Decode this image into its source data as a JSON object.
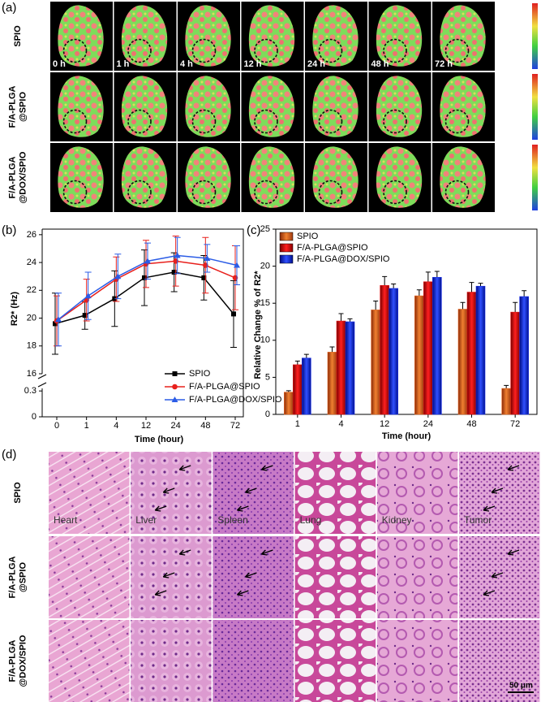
{
  "panel_a": {
    "label": "(a)",
    "rows": [
      [
        "SPIO"
      ],
      [
        "F/A-PLGA",
        "@SPIO"
      ],
      [
        "F/A-PLGA",
        "@DOX/SPIO"
      ]
    ],
    "time_labels": [
      "0 h",
      "1 h",
      "4 h",
      "12 h",
      "24 h",
      "48 h",
      "72 h"
    ]
  },
  "chart_data": [
    {
      "type": "line",
      "label": "(b)",
      "x_label": "Time (hour)",
      "y_label": "R2* (Hz)",
      "categories": [
        "0",
        "1",
        "4",
        "12",
        "24",
        "48",
        "72"
      ],
      "ylim": [
        16,
        26.4
      ],
      "yticks": [
        16,
        18,
        20,
        22,
        24,
        26
      ],
      "lower_ylim": [
        0,
        0.33
      ],
      "lower_yticks": [
        0,
        0.3
      ],
      "legend": "lower right",
      "series": [
        {
          "name": "SPIO",
          "color": "#000000",
          "marker": "square",
          "values": [
            19.6,
            20.2,
            21.4,
            22.9,
            23.3,
            22.9,
            20.3
          ],
          "errors": [
            2.2,
            1.0,
            2.0,
            2.0,
            1.4,
            1.6,
            2.4
          ]
        },
        {
          "name": "F/A-PLGA@SPIO",
          "color": "#e8201c",
          "marker": "circle",
          "values": [
            19.8,
            21.3,
            22.8,
            23.9,
            24.1,
            23.8,
            22.9
          ],
          "errors": [
            1.8,
            1.5,
            1.6,
            1.7,
            1.8,
            2.0,
            2.3
          ]
        },
        {
          "name": "F/A-PLGA@DOX/SPIO",
          "color": "#2b5ce6",
          "marker": "triangle",
          "values": [
            19.9,
            21.6,
            23.0,
            24.1,
            24.5,
            24.3,
            23.8
          ],
          "errors": [
            1.9,
            1.7,
            1.6,
            1.3,
            1.3,
            1.0,
            1.4
          ]
        }
      ]
    },
    {
      "type": "bar",
      "label": "(c)",
      "x_label": "Time (hour)",
      "y_label": "Relative Change % of R2*",
      "categories": [
        "1",
        "4",
        "12",
        "24",
        "48",
        "72"
      ],
      "ylim": [
        0,
        25
      ],
      "yticks": [
        0,
        5,
        10,
        15,
        20,
        25
      ],
      "legend": "upper left",
      "series": [
        {
          "name": "SPIO",
          "color": "#e8661e",
          "values": [
            3.0,
            8.4,
            14.1,
            16.0,
            14.2,
            3.5
          ],
          "errors": [
            0.2,
            0.7,
            1.2,
            0.8,
            0.9,
            0.4
          ]
        },
        {
          "name": "F/A-PLGA@SPIO",
          "color": "#e01414",
          "values": [
            6.7,
            12.6,
            17.4,
            17.9,
            16.5,
            13.8
          ],
          "errors": [
            0.5,
            1.0,
            1.2,
            1.3,
            1.3,
            1.3
          ]
        },
        {
          "name": "F/A-PLGA@DOX/SPIO",
          "color": "#1a30e8",
          "values": [
            7.6,
            12.5,
            17.0,
            18.5,
            17.3,
            15.9
          ],
          "errors": [
            0.5,
            0.4,
            0.6,
            0.8,
            0.4,
            0.8
          ]
        }
      ]
    }
  ],
  "panel_d": {
    "label": "(d)",
    "rows": [
      [
        "SPIO"
      ],
      [
        "F/A-PLGA",
        "@SPIO"
      ],
      [
        "F/A-PLGA",
        "@DOX/SPIO"
      ]
    ],
    "tissues": [
      "Heart",
      "Liver",
      "Spleen",
      "Lung",
      "Kidney",
      "Tumor"
    ],
    "scale_bar": "50 μm"
  }
}
